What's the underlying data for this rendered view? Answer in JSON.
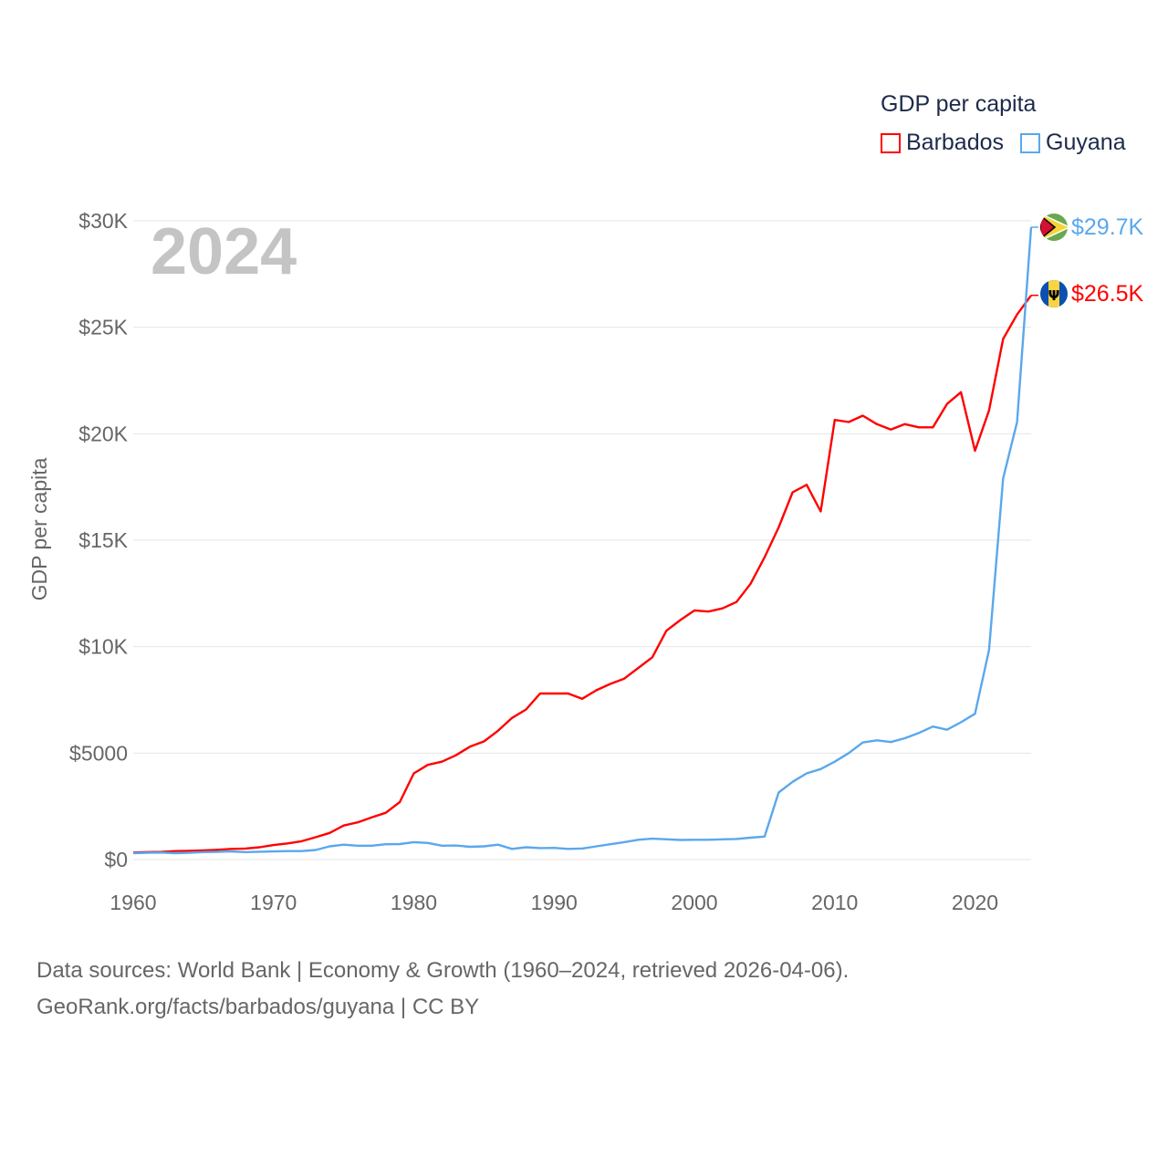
{
  "chart_data": {
    "type": "line",
    "title": "",
    "legend_title": "GDP per capita",
    "legend_placement": "top-right",
    "ylabel": "GDP per capita",
    "xlabel": "",
    "year_watermark": "2024",
    "xlim": [
      1960,
      2024
    ],
    "ylim": [
      0,
      30000
    ],
    "x_ticks": [
      "1960",
      "1970",
      "1980",
      "1990",
      "2000",
      "2010",
      "2020"
    ],
    "x_tick_values": [
      1960,
      1970,
      1980,
      1990,
      2000,
      2010,
      2020
    ],
    "y_ticks": [
      "$0",
      "$5000",
      "$10K",
      "$15K",
      "$20K",
      "$25K",
      "$30K"
    ],
    "y_tick_values": [
      0,
      5000,
      10000,
      15000,
      20000,
      25000,
      30000
    ],
    "grid": true,
    "x_start": 1960,
    "series": [
      {
        "name": "Barbados",
        "color": "#ff0000",
        "end_label": "$26.5K",
        "flag": "barbados-flag",
        "values": [
          330,
          350,
          360,
          400,
          410,
          430,
          460,
          500,
          520,
          580,
          680,
          760,
          860,
          1050,
          1250,
          1600,
          1750,
          1980,
          2200,
          2700,
          4050,
          4450,
          4600,
          4900,
          5300,
          5550,
          6050,
          6650,
          7050,
          7800,
          7800,
          7800,
          7550,
          7950,
          8250,
          8500,
          9000,
          9500,
          10750,
          11250,
          11700,
          11650,
          11800,
          12100,
          12950,
          14200,
          15600,
          17250,
          17600,
          16350,
          20650,
          20550,
          20850,
          20450,
          20200,
          20450,
          20300,
          20300,
          21400,
          21950,
          19200,
          21100,
          24450,
          25600,
          26500
        ]
      },
      {
        "name": "Guyana",
        "color": "#5aa8ec",
        "end_label": "$29.7K",
        "flag": "guyana-flag",
        "values": [
          300,
          320,
          330,
          300,
          320,
          350,
          360,
          380,
          350,
          370,
          380,
          400,
          400,
          450,
          620,
          700,
          650,
          650,
          720,
          730,
          820,
          780,
          650,
          660,
          600,
          620,
          700,
          500,
          580,
          540,
          550,
          500,
          520,
          620,
          720,
          820,
          930,
          980,
          950,
          920,
          930,
          930,
          950,
          970,
          1030,
          1080,
          3150,
          3650,
          4050,
          4250,
          4600,
          5000,
          5500,
          5600,
          5520,
          5700,
          5950,
          6250,
          6100,
          6450,
          6850,
          9850,
          17900,
          20550,
          29700
        ]
      }
    ]
  },
  "footer": {
    "line1": "Data sources: World Bank | Economy & Growth (1960–2024, retrieved 2026-04-06).",
    "line2": "GeoRank.org/facts/barbados/guyana | CC BY"
  }
}
